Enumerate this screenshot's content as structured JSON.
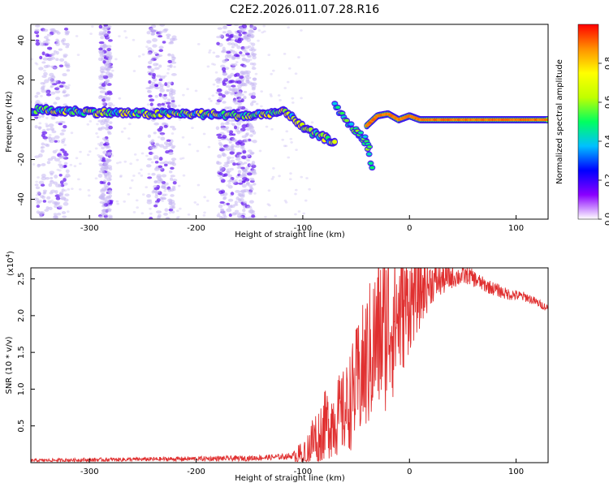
{
  "title": "C2E2.2026.011.07.28.R16",
  "colors": {
    "frame": "#000000",
    "snr_line": "#e03030",
    "scatter_light": "#c7b8f2",
    "scatter_dark": "#6a1ff0"
  },
  "chart_data": [
    {
      "type": "heatmap",
      "xlabel": "Height of straight line (km)",
      "ylabel": "Frequency (Hz)",
      "xlim": [
        -355,
        130
      ],
      "ylim": [
        -50,
        48
      ],
      "x_ticks": [
        -300,
        -200,
        -100,
        0,
        100
      ],
      "y_ticks": [
        -40,
        -20,
        0,
        20,
        40
      ],
      "colorbar": {
        "label": "Normalized spectral amplitude",
        "range": [
          0.0,
          1.0
        ],
        "ticks": [
          0.0,
          0.2,
          0.4,
          0.6,
          0.8
        ],
        "tick_labels": [
          "0.0",
          "0.2",
          "0.4",
          "0.6",
          "0.8"
        ],
        "colormap": [
          "#ffffff",
          "#8a00ff",
          "#0000ff",
          "#00c0ff",
          "#00ff60",
          "#c0ff00",
          "#ffff00",
          "#ff9000",
          "#ff0000"
        ]
      },
      "main_track": [
        [
          -355,
          5
        ],
        [
          -300,
          4
        ],
        [
          -250,
          3
        ],
        [
          -200,
          3
        ],
        [
          -150,
          2
        ],
        [
          -120,
          4
        ],
        [
          -110,
          2
        ],
        [
          -100,
          -4
        ],
        [
          -90,
          -7
        ],
        [
          -80,
          -9
        ],
        [
          -70,
          -11
        ]
      ],
      "secondary_track": [
        [
          -70,
          7
        ],
        [
          -60,
          0
        ],
        [
          -50,
          -6
        ],
        [
          -40,
          -12
        ],
        [
          -35,
          -25
        ]
      ],
      "descending_track": [
        [
          -50,
          -5
        ],
        [
          -40,
          -10
        ],
        [
          -37,
          -15
        ]
      ],
      "recovery_track": [
        [
          -40,
          -3
        ],
        [
          -30,
          2
        ],
        [
          -20,
          3
        ],
        [
          -10,
          0
        ],
        [
          0,
          2
        ],
        [
          10,
          0
        ],
        [
          130,
          0
        ]
      ],
      "scatter_columns": [
        [
          -350,
          -320
        ],
        [
          -290,
          -280
        ],
        [
          -245,
          -220
        ],
        [
          -180,
          -160
        ],
        [
          -160,
          -145
        ]
      ],
      "grid": false
    },
    {
      "type": "line",
      "xlabel": "Height of straight line (km)",
      "ylabel": "SNR (10 * v/v)",
      "y_multiplier": "(x10",
      "y_multiplier_exp": "4",
      "y_multiplier_close": ")",
      "xlim": [
        -355,
        130
      ],
      "ylim": [
        0,
        2.65
      ],
      "x_ticks": [
        -300,
        -200,
        -100,
        0,
        100
      ],
      "y_ticks": [
        0.5,
        1.0,
        1.5,
        2.0,
        2.5
      ],
      "y_tick_labels": [
        "0.5",
        "1.0",
        "1.5",
        "2.0",
        "2.5"
      ],
      "series": [
        {
          "envelope": [
            [
              -355,
              0.03
            ],
            [
              -150,
              0.06
            ],
            [
              -120,
              0.08
            ],
            [
              -100,
              0.1
            ],
            [
              -90,
              0.3
            ],
            [
              -80,
              0.5
            ],
            [
              -60,
              0.7
            ],
            [
              -45,
              1.2
            ],
            [
              -30,
              1.7
            ],
            [
              -20,
              1.9
            ],
            [
              -10,
              2.0
            ],
            [
              0,
              2.2
            ],
            [
              20,
              2.45
            ],
            [
              40,
              2.52
            ],
            [
              55,
              2.55
            ],
            [
              70,
              2.42
            ],
            [
              90,
              2.3
            ],
            [
              110,
              2.25
            ],
            [
              130,
              2.1
            ]
          ],
          "spread": [
            [
              -355,
              0.02
            ],
            [
              -110,
              0.04
            ],
            [
              -90,
              0.4
            ],
            [
              -60,
              0.6
            ],
            [
              -40,
              1.0
            ],
            [
              -20,
              1.2
            ],
            [
              0,
              0.7
            ],
            [
              20,
              0.3
            ],
            [
              40,
              0.15
            ],
            [
              70,
              0.1
            ],
            [
              130,
              0.05
            ]
          ]
        }
      ],
      "grid": false
    }
  ]
}
